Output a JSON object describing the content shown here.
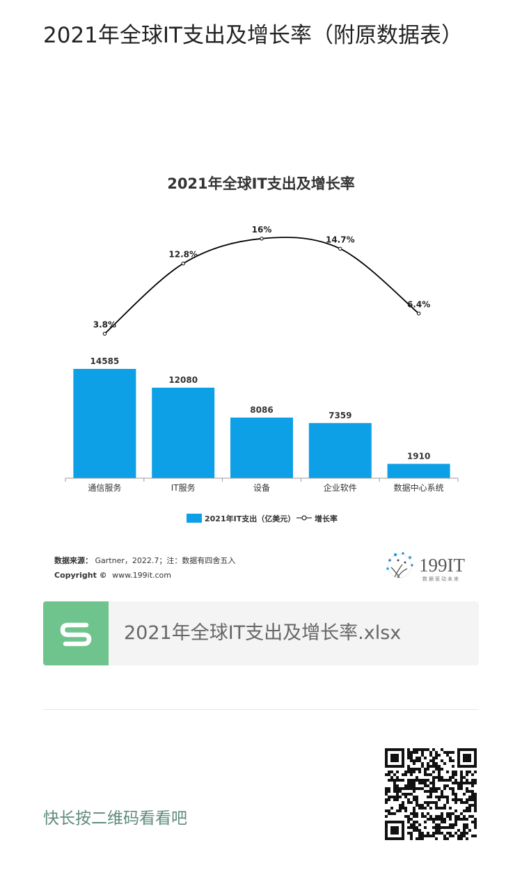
{
  "article": {
    "title": "2021年全球IT支出及增长率（附原数据表）"
  },
  "chart_data": {
    "type": "bar",
    "title": "2021年全球IT支出及增长率",
    "categories": [
      "通信服务",
      "IT服务",
      "设备",
      "企业软件",
      "数据中心系统"
    ],
    "series": [
      {
        "name": "2021年IT支出（亿美元）",
        "type": "bar",
        "values": [
          14585,
          12080,
          8086,
          7359,
          1910
        ],
        "color": "#0ea0e6"
      },
      {
        "name": "增长率",
        "type": "line",
        "values": [
          3.8,
          12.8,
          16,
          14.7,
          6.4
        ],
        "unit": "%",
        "color": "#000000"
      }
    ],
    "bar_labels": [
      "14585",
      "12080",
      "8086",
      "7359",
      "1910"
    ],
    "line_labels": [
      "3.8%",
      "12.8%",
      "16%",
      "14.7%",
      "6.4%"
    ],
    "legend": {
      "bar_label": "2021年IT支出（亿美元）",
      "line_label": "增长率",
      "placement": "bottom"
    },
    "grid": false,
    "source_label": "数据来源：",
    "source_text": "Gartner，2022.7；注：数据有四舍五入",
    "copyright_label": "Copyright ©",
    "copyright_text": "www.199it.com",
    "brand_name": "199IT",
    "brand_tagline": "数据驱动未来"
  },
  "attachment": {
    "file_name": "2021年全球IT支出及增长率.xlsx",
    "file_icon": "spreadsheet-s-icon",
    "icon_color": "#6fc48d"
  },
  "footer": {
    "qr_hint": "快长按二维码看看吧",
    "qr_icon": "qr-code-icon"
  }
}
